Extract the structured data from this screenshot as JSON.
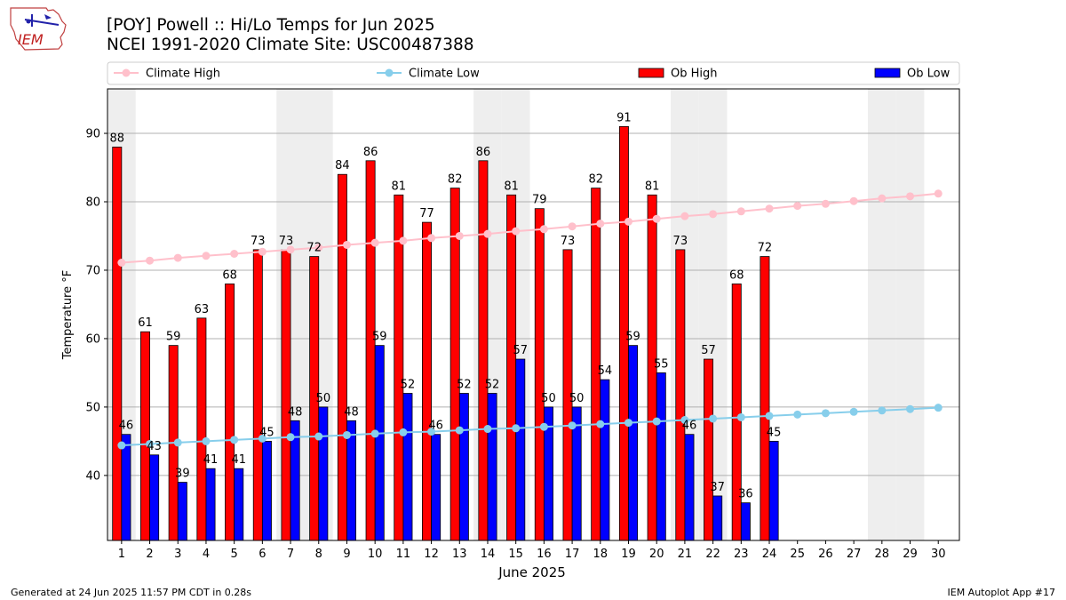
{
  "header": {
    "logo_text": "IEM",
    "title_line1": "[POY] Powell :: Hi/Lo Temps for Jun 2025",
    "title_line2": "NCEI 1991-2020 Climate Site: USC00487388"
  },
  "footer": {
    "left": "Generated at 24 Jun 2025 11:57 PM CDT in 0.28s",
    "right": "IEM Autoplot App #17"
  },
  "colors": {
    "ob_high": "#ff0000",
    "ob_low": "#0000ff",
    "climate_high": "#ffc0cb",
    "climate_low": "#87ceeb",
    "weekend_shade": "#eeeeee",
    "grid": "#b0b0b0"
  },
  "chart_data": {
    "type": "bar",
    "xlabel": "June 2025",
    "ylabel": "Temperature °F",
    "ylim": [
      30.5,
      96.5
    ],
    "yticks": [
      40,
      50,
      60,
      70,
      80,
      90
    ],
    "grid": "horizontal",
    "legend_position": "top",
    "legend": [
      "Climate High",
      "Climate Low",
      "Ob High",
      "Ob Low"
    ],
    "days": [
      1,
      2,
      3,
      4,
      5,
      6,
      7,
      8,
      9,
      10,
      11,
      12,
      13,
      14,
      15,
      16,
      17,
      18,
      19,
      20,
      21,
      22,
      23,
      24,
      25,
      26,
      27,
      28,
      29,
      30
    ],
    "weekend_days": [
      1,
      7,
      8,
      14,
      15,
      21,
      22,
      28,
      29
    ],
    "series": [
      {
        "name": "Ob High",
        "kind": "bar",
        "values": [
          88,
          61,
          59,
          63,
          68,
          73,
          73,
          72,
          84,
          86,
          81,
          77,
          82,
          86,
          81,
          79,
          73,
          82,
          91,
          81,
          73,
          57,
          68,
          72
        ]
      },
      {
        "name": "Ob Low",
        "kind": "bar",
        "values": [
          46,
          43,
          39,
          41,
          41,
          45,
          48,
          50,
          48,
          59,
          52,
          46,
          52,
          52,
          57,
          50,
          50,
          54,
          59,
          55,
          46,
          37,
          36,
          45
        ]
      },
      {
        "name": "Climate High",
        "kind": "line",
        "values": [
          71.1,
          71.4,
          71.8,
          72.1,
          72.4,
          72.7,
          73.0,
          73.3,
          73.7,
          74.0,
          74.3,
          74.7,
          75.0,
          75.3,
          75.7,
          76.0,
          76.4,
          76.8,
          77.1,
          77.5,
          77.9,
          78.2,
          78.6,
          79.0,
          79.4,
          79.7,
          80.1,
          80.5,
          80.8,
          81.2
        ]
      },
      {
        "name": "Climate Low",
        "kind": "line",
        "values": [
          44.4,
          44.6,
          44.8,
          45.0,
          45.2,
          45.4,
          45.6,
          45.7,
          45.9,
          46.1,
          46.3,
          46.4,
          46.6,
          46.8,
          46.9,
          47.1,
          47.3,
          47.5,
          47.7,
          47.9,
          48.1,
          48.3,
          48.5,
          48.7,
          48.9,
          49.1,
          49.3,
          49.5,
          49.7,
          49.9
        ]
      }
    ]
  }
}
